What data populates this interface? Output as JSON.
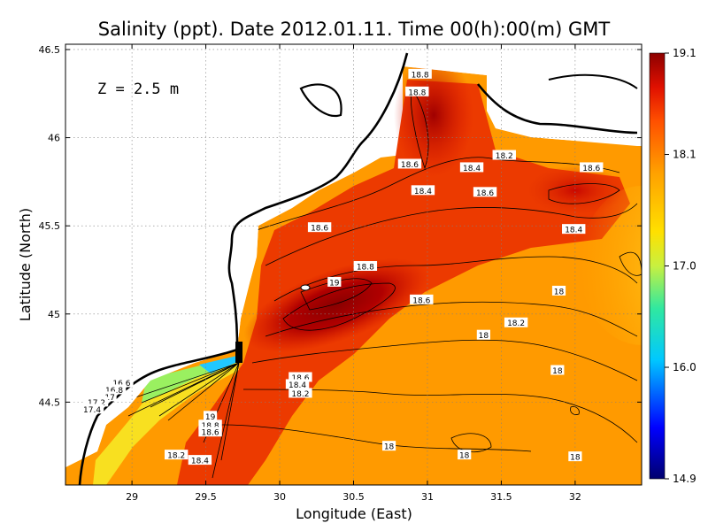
{
  "chart_data": {
    "type": "heatmap",
    "title": "Salinity (ppt). Date 2012.01.11. Time 00(h):00(m) GMT",
    "xlabel": "Longitude (East)",
    "ylabel": "Latitude (North)",
    "annotation": "Z = 2.5 m",
    "xlim": [
      28.55,
      32.45
    ],
    "ylim": [
      44.03,
      46.53
    ],
    "xticks": [
      29,
      29.5,
      30,
      30.5,
      31,
      31.5,
      32
    ],
    "yticks": [
      44.5,
      45,
      45.5,
      46,
      46.5
    ],
    "xtick_labels": [
      "29",
      "29.5",
      "30",
      "30.5",
      "31",
      "31.5",
      "32"
    ],
    "ytick_labels": [
      "44.5",
      "45",
      "45.5",
      "46",
      "46.5"
    ],
    "grid": true,
    "colorbar": {
      "min": 14.9,
      "max": 19.1,
      "ticks": [
        19.1,
        18.1,
        17.0,
        16.0,
        14.9
      ],
      "tick_labels": [
        "19.1",
        "18.1",
        "17.0",
        "16.0",
        "14.9"
      ],
      "colors": [
        "#00006e",
        "#0000ff",
        "#00c8ff",
        "#30e8a0",
        "#c8f040",
        "#ffe000",
        "#ffa000",
        "#ff5000",
        "#e01000",
        "#8c0000"
      ]
    },
    "contour_labels": [
      {
        "text": "18.8",
        "lon": 30.95,
        "lat": 46.36
      },
      {
        "text": "18.8",
        "lon": 30.93,
        "lat": 46.26
      },
      {
        "text": "18.6",
        "lon": 30.88,
        "lat": 45.85
      },
      {
        "text": "18.2",
        "lon": 31.52,
        "lat": 45.9
      },
      {
        "text": "18.4",
        "lon": 31.3,
        "lat": 45.83
      },
      {
        "text": "18.6",
        "lon": 32.11,
        "lat": 45.83
      },
      {
        "text": "18.4",
        "lon": 30.97,
        "lat": 45.7
      },
      {
        "text": "18.6",
        "lon": 31.39,
        "lat": 45.69
      },
      {
        "text": "18.6",
        "lon": 30.27,
        "lat": 45.49
      },
      {
        "text": "18.4",
        "lon": 31.99,
        "lat": 45.48
      },
      {
        "text": "18.8",
        "lon": 30.58,
        "lat": 45.27
      },
      {
        "text": "19",
        "lon": 30.37,
        "lat": 45.18
      },
      {
        "text": "18.6",
        "lon": 30.96,
        "lat": 45.08
      },
      {
        "text": "18",
        "lon": 31.89,
        "lat": 45.13
      },
      {
        "text": "18.2",
        "lon": 31.6,
        "lat": 44.95
      },
      {
        "text": "18",
        "lon": 31.38,
        "lat": 44.88
      },
      {
        "text": "18",
        "lon": 31.88,
        "lat": 44.68
      },
      {
        "text": "18.6",
        "lon": 30.14,
        "lat": 44.64
      },
      {
        "text": "18.4",
        "lon": 30.12,
        "lat": 44.6
      },
      {
        "text": "18.2",
        "lon": 30.14,
        "lat": 44.55
      },
      {
        "text": "16.6",
        "lon": 28.93,
        "lat": 44.61
      },
      {
        "text": "16.8",
        "lon": 28.88,
        "lat": 44.57
      },
      {
        "text": "17",
        "lon": 28.85,
        "lat": 44.53
      },
      {
        "text": "17.2",
        "lon": 28.76,
        "lat": 44.5
      },
      {
        "text": "17.4",
        "lon": 28.73,
        "lat": 44.46
      },
      {
        "text": "19",
        "lon": 29.53,
        "lat": 44.42
      },
      {
        "text": "18.8",
        "lon": 29.53,
        "lat": 44.37
      },
      {
        "text": "18.6",
        "lon": 29.53,
        "lat": 44.33
      },
      {
        "text": "18",
        "lon": 30.74,
        "lat": 44.25
      },
      {
        "text": "18.2",
        "lon": 29.3,
        "lat": 44.2
      },
      {
        "text": "18",
        "lon": 31.25,
        "lat": 44.2
      },
      {
        "text": "18.4",
        "lon": 29.46,
        "lat": 44.17
      },
      {
        "text": "18",
        "lon": 32.0,
        "lat": 44.19
      }
    ]
  }
}
